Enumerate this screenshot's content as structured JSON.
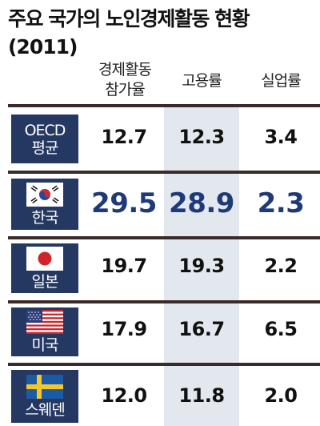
{
  "title": "주요 국가의 노인경제활동 현황",
  "subtitle": "(2011)",
  "columns": [
    {
      "line1": "경제활동",
      "line2": "참가율"
    },
    {
      "line1": "고용률",
      "line2": ""
    },
    {
      "line1": "실업률",
      "line2": ""
    }
  ],
  "rows": [
    {
      "label1": "OECD",
      "label2": "평균",
      "flag": "",
      "v1": "12.7",
      "v2": "12.3",
      "v3": "3.4"
    },
    {
      "label1": "한국",
      "label2": "",
      "flag": "south-korea-flag",
      "v1": "29.5",
      "v2": "28.9",
      "v3": "2.3"
    },
    {
      "label1": "일본",
      "label2": "",
      "flag": "japan-flag",
      "v1": "19.7",
      "v2": "19.3",
      "v3": "2.2"
    },
    {
      "label1": "미국",
      "label2": "",
      "flag": "usa-flag",
      "v1": "17.9",
      "v2": "16.7",
      "v3": "6.5"
    },
    {
      "label1": "스웨덴",
      "label2": "",
      "flag": "sweden-flag",
      "v1": "12.0",
      "v2": "11.8",
      "v3": "2.0"
    }
  ],
  "colors": {
    "label_bg": "#253862",
    "highlight": "#1f3a78",
    "column_shade": "#e3e8ef",
    "rule": "#3a2b2a"
  },
  "chart_data": {
    "type": "table",
    "title": "주요 국가의 노인경제활동 현황",
    "subtitle": "(2011)",
    "columns": [
      "경제활동 참가율",
      "고용률",
      "실업률"
    ],
    "categories": [
      "OECD 평균",
      "한국",
      "일본",
      "미국",
      "스웨덴"
    ],
    "series": [
      {
        "name": "경제활동 참가율",
        "values": [
          12.7,
          29.5,
          19.7,
          17.9,
          12.0
        ]
      },
      {
        "name": "고용률",
        "values": [
          12.3,
          28.9,
          19.3,
          16.7,
          11.8
        ]
      },
      {
        "name": "실업률",
        "values": [
          3.4,
          2.3,
          2.2,
          6.5,
          2.0
        ]
      }
    ]
  }
}
